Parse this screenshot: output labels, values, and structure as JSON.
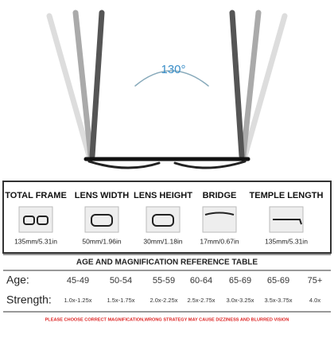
{
  "angle_label": "130°",
  "dimensions": [
    {
      "label": "TOTAL FRAME",
      "value": "135mm/5.31in"
    },
    {
      "label": "LENS WIDTH",
      "value": "50mm/1.96in"
    },
    {
      "label": "LENS HEIGHT",
      "value": "30mm/1.18in"
    },
    {
      "label": "BRIDGE",
      "value": "17mm/0.67in"
    },
    {
      "label": "TEMPLE LENGTH",
      "value": "135mm/5.31in"
    }
  ],
  "table": {
    "title": "AGE AND MAGNIFICATION REFERENCE TABLE",
    "rows": [
      {
        "header": "Age:",
        "cells": [
          "45-49",
          "50-54",
          "55-59",
          "60-64",
          "65-69",
          "65-69",
          "75+"
        ]
      },
      {
        "header": "Strength:",
        "cells": [
          "1.0x-1.25x",
          "1.5x-1.75x",
          "2.0x-2.25x",
          "2.5x-2.75x",
          "3.0x-3.25x",
          "3.5x-3.75x",
          "4.0x"
        ]
      }
    ]
  },
  "footer": "PLEASE CHOOSE CORRECT MAGNIFICATION,WRONG STRATEGY MAY CAUSE DIZZINESS AND BLURRED VISION"
}
